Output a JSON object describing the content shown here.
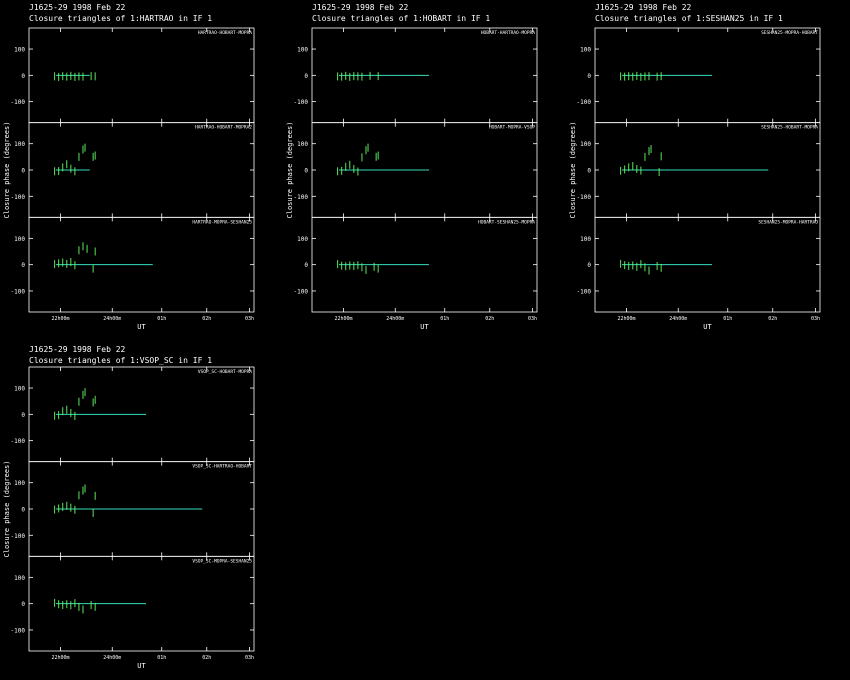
{
  "colors": {
    "background": "#000000",
    "frame": "#ffffff",
    "data": "#66ff66",
    "model": "#33ddbb"
  },
  "chart_data": [
    {
      "type": "scatter",
      "title": "J1625-29   1998 Feb 22",
      "subtitle": "Closure triangles of 1:HARTRAO in IF 1",
      "xlabel": "UT",
      "ylabel": "Closure phase   (degrees)",
      "x_ticks": [
        "22^h00^m",
        "24^h00^m",
        "01^h",
        "02^h",
        "03^h"
      ],
      "ylim": [
        -180,
        180
      ],
      "y_ticks": [
        "100",
        "0",
        "-100"
      ],
      "panels": [
        {
          "label": "HARTRAO-HOBART-MOPRA",
          "line_end": 0.27,
          "points": [
            [
              0.06,
              -4
            ],
            [
              0.08,
              -6
            ],
            [
              0.1,
              -3
            ],
            [
              0.12,
              -5
            ],
            [
              0.14,
              -2
            ],
            [
              0.16,
              -6
            ],
            [
              0.18,
              -4
            ],
            [
              0.2,
              -5
            ],
            [
              0.24,
              -3
            ],
            [
              0.26,
              -4
            ]
          ]
        },
        {
          "label": "HARTRAO-HOBART-MOPRA2",
          "line_end": 0.27,
          "points": [
            [
              0.06,
              -5
            ],
            [
              0.08,
              -4
            ],
            [
              0.1,
              10
            ],
            [
              0.12,
              22
            ],
            [
              0.14,
              5
            ],
            [
              0.16,
              -5
            ],
            [
              0.18,
              50
            ],
            [
              0.2,
              78
            ],
            [
              0.21,
              85
            ],
            [
              0.25,
              50
            ],
            [
              0.26,
              55
            ]
          ]
        },
        {
          "label": "HARTRAO-MOPRA-SESHAN25",
          "line_end": 0.55,
          "points": [
            [
              0.06,
              2
            ],
            [
              0.08,
              5
            ],
            [
              0.1,
              8
            ],
            [
              0.12,
              3
            ],
            [
              0.14,
              10
            ],
            [
              0.16,
              -2
            ],
            [
              0.18,
              55
            ],
            [
              0.2,
              70
            ],
            [
              0.22,
              60
            ],
            [
              0.25,
              -15
            ],
            [
              0.26,
              50
            ]
          ]
        }
      ]
    },
    {
      "type": "scatter",
      "title": "J1625-29   1998 Feb 22",
      "subtitle": "Closure triangles of 1:HOBART in IF 1",
      "xlabel": "UT",
      "ylabel": "Closure phase   (degrees)",
      "x_ticks": [
        "22^h00^m",
        "24^h00^m",
        "01^h",
        "02^h",
        "03^h"
      ],
      "ylim": [
        -180,
        180
      ],
      "y_ticks": [
        "100",
        "0",
        "-100"
      ],
      "panels": [
        {
          "label": "HOBART-HARTRAO-MOPRA",
          "line_end": 0.52,
          "points": [
            [
              0.06,
              -4
            ],
            [
              0.08,
              -5
            ],
            [
              0.1,
              -2
            ],
            [
              0.12,
              -6
            ],
            [
              0.14,
              -3
            ],
            [
              0.16,
              -4
            ],
            [
              0.18,
              -5
            ],
            [
              0.22,
              -2
            ],
            [
              0.26,
              -3
            ]
          ]
        },
        {
          "label": "HOBART-MOPRA-VSOP",
          "line_end": 0.52,
          "points": [
            [
              0.06,
              -5
            ],
            [
              0.08,
              -3
            ],
            [
              0.1,
              12
            ],
            [
              0.12,
              20
            ],
            [
              0.14,
              4
            ],
            [
              0.16,
              -6
            ],
            [
              0.18,
              48
            ],
            [
              0.2,
              75
            ],
            [
              0.21,
              85
            ],
            [
              0.25,
              50
            ],
            [
              0.26,
              55
            ]
          ]
        },
        {
          "label": "HOBART-SESHAN25-MOPRA",
          "line_end": 0.52,
          "points": [
            [
              0.06,
              2
            ],
            [
              0.08,
              -4
            ],
            [
              0.1,
              -6
            ],
            [
              0.12,
              -3
            ],
            [
              0.14,
              -5
            ],
            [
              0.16,
              -2
            ],
            [
              0.18,
              -10
            ],
            [
              0.2,
              -20
            ],
            [
              0.24,
              -8
            ],
            [
              0.26,
              -15
            ]
          ]
        }
      ]
    },
    {
      "type": "scatter",
      "title": "J1625-29   1998 Feb 22",
      "subtitle": "Closure triangles of 1:SESHAN25 in IF 1",
      "xlabel": "UT",
      "ylabel": "Closure phase   (degrees)",
      "x_ticks": [
        "22^h00^m",
        "24^h00^m",
        "01^h",
        "02^h",
        "03^h"
      ],
      "ylim": [
        -180,
        180
      ],
      "y_ticks": [
        "100",
        "0",
        "-100"
      ],
      "panels": [
        {
          "label": "SESHAN25-MOPRA-HOBART",
          "line_end": 0.52,
          "points": [
            [
              0.06,
              -4
            ],
            [
              0.08,
              -5
            ],
            [
              0.1,
              -3
            ],
            [
              0.12,
              -5
            ],
            [
              0.14,
              -2
            ],
            [
              0.16,
              -6
            ],
            [
              0.18,
              -4
            ],
            [
              0.2,
              -3
            ],
            [
              0.24,
              -5
            ],
            [
              0.26,
              -3
            ]
          ]
        },
        {
          "label": "SESHAN25-HOBART-MOPRA",
          "line_end": 0.77,
          "points": [
            [
              0.06,
              -3
            ],
            [
              0.08,
              2
            ],
            [
              0.1,
              10
            ],
            [
              0.12,
              15
            ],
            [
              0.14,
              4
            ],
            [
              0.16,
              -2
            ],
            [
              0.18,
              50
            ],
            [
              0.2,
              72
            ],
            [
              0.21,
              80
            ],
            [
              0.25,
              -8
            ],
            [
              0.26,
              52
            ]
          ]
        },
        {
          "label": "SESHAN25-MOPRA-HARTRAO",
          "line_end": 0.52,
          "points": [
            [
              0.06,
              3
            ],
            [
              0.08,
              -2
            ],
            [
              0.1,
              -5
            ],
            [
              0.12,
              -3
            ],
            [
              0.14,
              -8
            ],
            [
              0.16,
              2
            ],
            [
              0.18,
              -10
            ],
            [
              0.2,
              -22
            ],
            [
              0.24,
              -5
            ],
            [
              0.26,
              -12
            ]
          ]
        }
      ]
    },
    {
      "type": "scatter",
      "title": "J1625-29   1998 Feb 22",
      "subtitle": "Closure triangles of 1:VSOP_SC in IF 1",
      "xlabel": "UT",
      "ylabel": "Closure phase   (degrees)",
      "x_ticks": [
        "22^h00^m",
        "24^h00^m",
        "01^h",
        "02^h",
        "03^h"
      ],
      "ylim": [
        -180,
        180
      ],
      "y_ticks": [
        "100",
        "0",
        "-100"
      ],
      "panels": [
        {
          "label": "VSOP_SC-HOBART-MOPRA",
          "line_end": 0.52,
          "points": [
            [
              0.06,
              -5
            ],
            [
              0.08,
              -3
            ],
            [
              0.1,
              12
            ],
            [
              0.12,
              18
            ],
            [
              0.14,
              5
            ],
            [
              0.16,
              -6
            ],
            [
              0.18,
              48
            ],
            [
              0.2,
              74
            ],
            [
              0.21,
              84
            ],
            [
              0.25,
              45
            ],
            [
              0.26,
              55
            ]
          ]
        },
        {
          "label": "VSOP_SC-HARTRAO-HOBART",
          "line_end": 0.77,
          "points": [
            [
              0.06,
              -2
            ],
            [
              0.08,
              2
            ],
            [
              0.1,
              8
            ],
            [
              0.12,
              12
            ],
            [
              0.14,
              5
            ],
            [
              0.16,
              -3
            ],
            [
              0.18,
              52
            ],
            [
              0.2,
              70
            ],
            [
              0.21,
              78
            ],
            [
              0.25,
              -15
            ],
            [
              0.26,
              50
            ]
          ]
        },
        {
          "label": "VSOP_SC-MOPRA-SESHAN25",
          "line_end": 0.52,
          "points": [
            [
              0.06,
              3
            ],
            [
              0.08,
              -2
            ],
            [
              0.1,
              -5
            ],
            [
              0.12,
              -2
            ],
            [
              0.14,
              -6
            ],
            [
              0.16,
              2
            ],
            [
              0.18,
              -12
            ],
            [
              0.2,
              -22
            ],
            [
              0.24,
              -5
            ],
            [
              0.26,
              -12
            ]
          ]
        }
      ]
    }
  ]
}
